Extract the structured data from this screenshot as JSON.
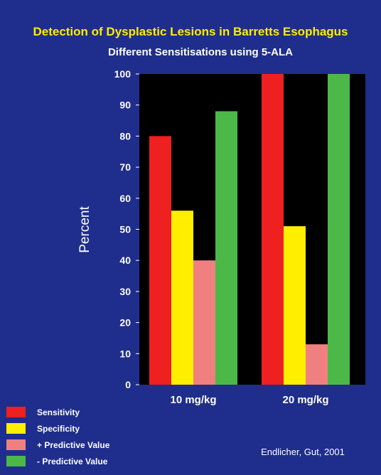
{
  "chart_data": {
    "type": "bar",
    "title": "Detection of Dysplastic Lesions in Barretts Esophagus",
    "subtitle": "Different Sensitisations using 5-ALA",
    "ylabel": "Percent",
    "xlabel": "",
    "ylim": [
      0,
      100
    ],
    "yticks": [
      0,
      10,
      20,
      30,
      40,
      50,
      60,
      70,
      80,
      90,
      100
    ],
    "yticklabels": [
      "0",
      "10",
      "20",
      "30",
      "40",
      "50",
      "60",
      "70",
      "80",
      "90",
      "100"
    ],
    "grid": false,
    "legend": "bottom-left",
    "categories": [
      "10 mg/kg",
      "20 mg/kg"
    ],
    "series": [
      {
        "name": "Sensitivity",
        "values": [
          80,
          100
        ],
        "color": "#ee2020"
      },
      {
        "name": "Specificity",
        "values": [
          56,
          51
        ],
        "color": "#ffee00"
      },
      {
        "name": "+ Predictive Value",
        "values": [
          40,
          13
        ],
        "color": "#f08080"
      },
      {
        "name": "- Predictive Value",
        "values": [
          88,
          100
        ],
        "color": "#4cb848"
      }
    ],
    "annotation": "Endlicher, Gut, 2001"
  },
  "colors": {
    "background": "#1f2e8c",
    "plot_area": "#000000",
    "title": "#ffee00",
    "text": "#ffffff"
  }
}
